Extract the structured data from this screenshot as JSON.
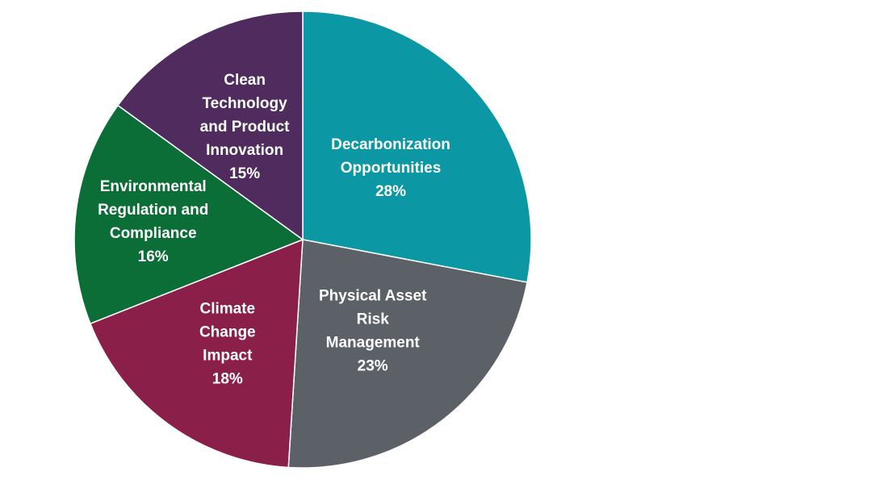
{
  "chart_data": {
    "type": "pie",
    "title": "",
    "slices": [
      {
        "label": [
          "Decarbonization",
          "Opportunities"
        ],
        "value": 28,
        "value_label": "28%",
        "color": "#0b97a3"
      },
      {
        "label": [
          "Physical Asset",
          "Risk",
          "Management"
        ],
        "value": 23,
        "value_label": "23%",
        "color": "#5b6166"
      },
      {
        "label": [
          "Climate",
          "Change",
          "Impact"
        ],
        "value": 18,
        "value_label": "18%",
        "color": "#8a1f4a"
      },
      {
        "label": [
          "Environmental",
          "Regulation and",
          "Compliance"
        ],
        "value": 16,
        "value_label": "16%",
        "color": "#0b6e36"
      },
      {
        "label": [
          "Clean",
          "Technology",
          "and Product",
          "Innovation"
        ],
        "value": 15,
        "value_label": "15%",
        "color": "#4f2b5e"
      }
    ],
    "start_angle_deg": 0,
    "direction": "clockwise",
    "legend": "none"
  }
}
